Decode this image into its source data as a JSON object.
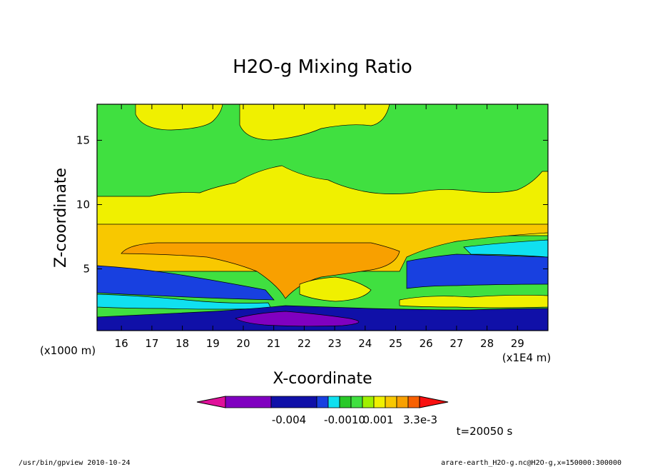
{
  "chart_data": {
    "type": "heatmap",
    "title": "H2O-g Mixing Ratio",
    "xlabel": "X-coordinate",
    "ylabel": "Z-coordinate",
    "x_range": [
      15.2,
      30.0
    ],
    "y_range": [
      0.2,
      17.8
    ],
    "x_ticks": [
      16,
      17,
      18,
      19,
      20,
      21,
      22,
      23,
      24,
      25,
      26,
      27,
      28,
      29
    ],
    "y_ticks": [
      5,
      10,
      15
    ],
    "x_unit_label": "(x1E4 m)",
    "y_unit_label": "(x1000 m)",
    "colorbar": {
      "labels": [
        "-0.004",
        "-0.0010",
        "0.001",
        "3.3e-3"
      ],
      "colors": [
        "#e0109a",
        "#8000c0",
        "#1010a8",
        "#1840e0",
        "#10e0f0",
        "#28c828",
        "#40e040",
        "#a0f000",
        "#f0f000",
        "#f8c800",
        "#f8a000",
        "#f86000",
        "#f81010"
      ]
    },
    "time_label": "t=20050 s"
  },
  "footer": {
    "left": "/usr/bin/gpview  2010-10-24",
    "right": "arare-earth_H2O-g.nc@H2O-g,x=150000:300000"
  }
}
